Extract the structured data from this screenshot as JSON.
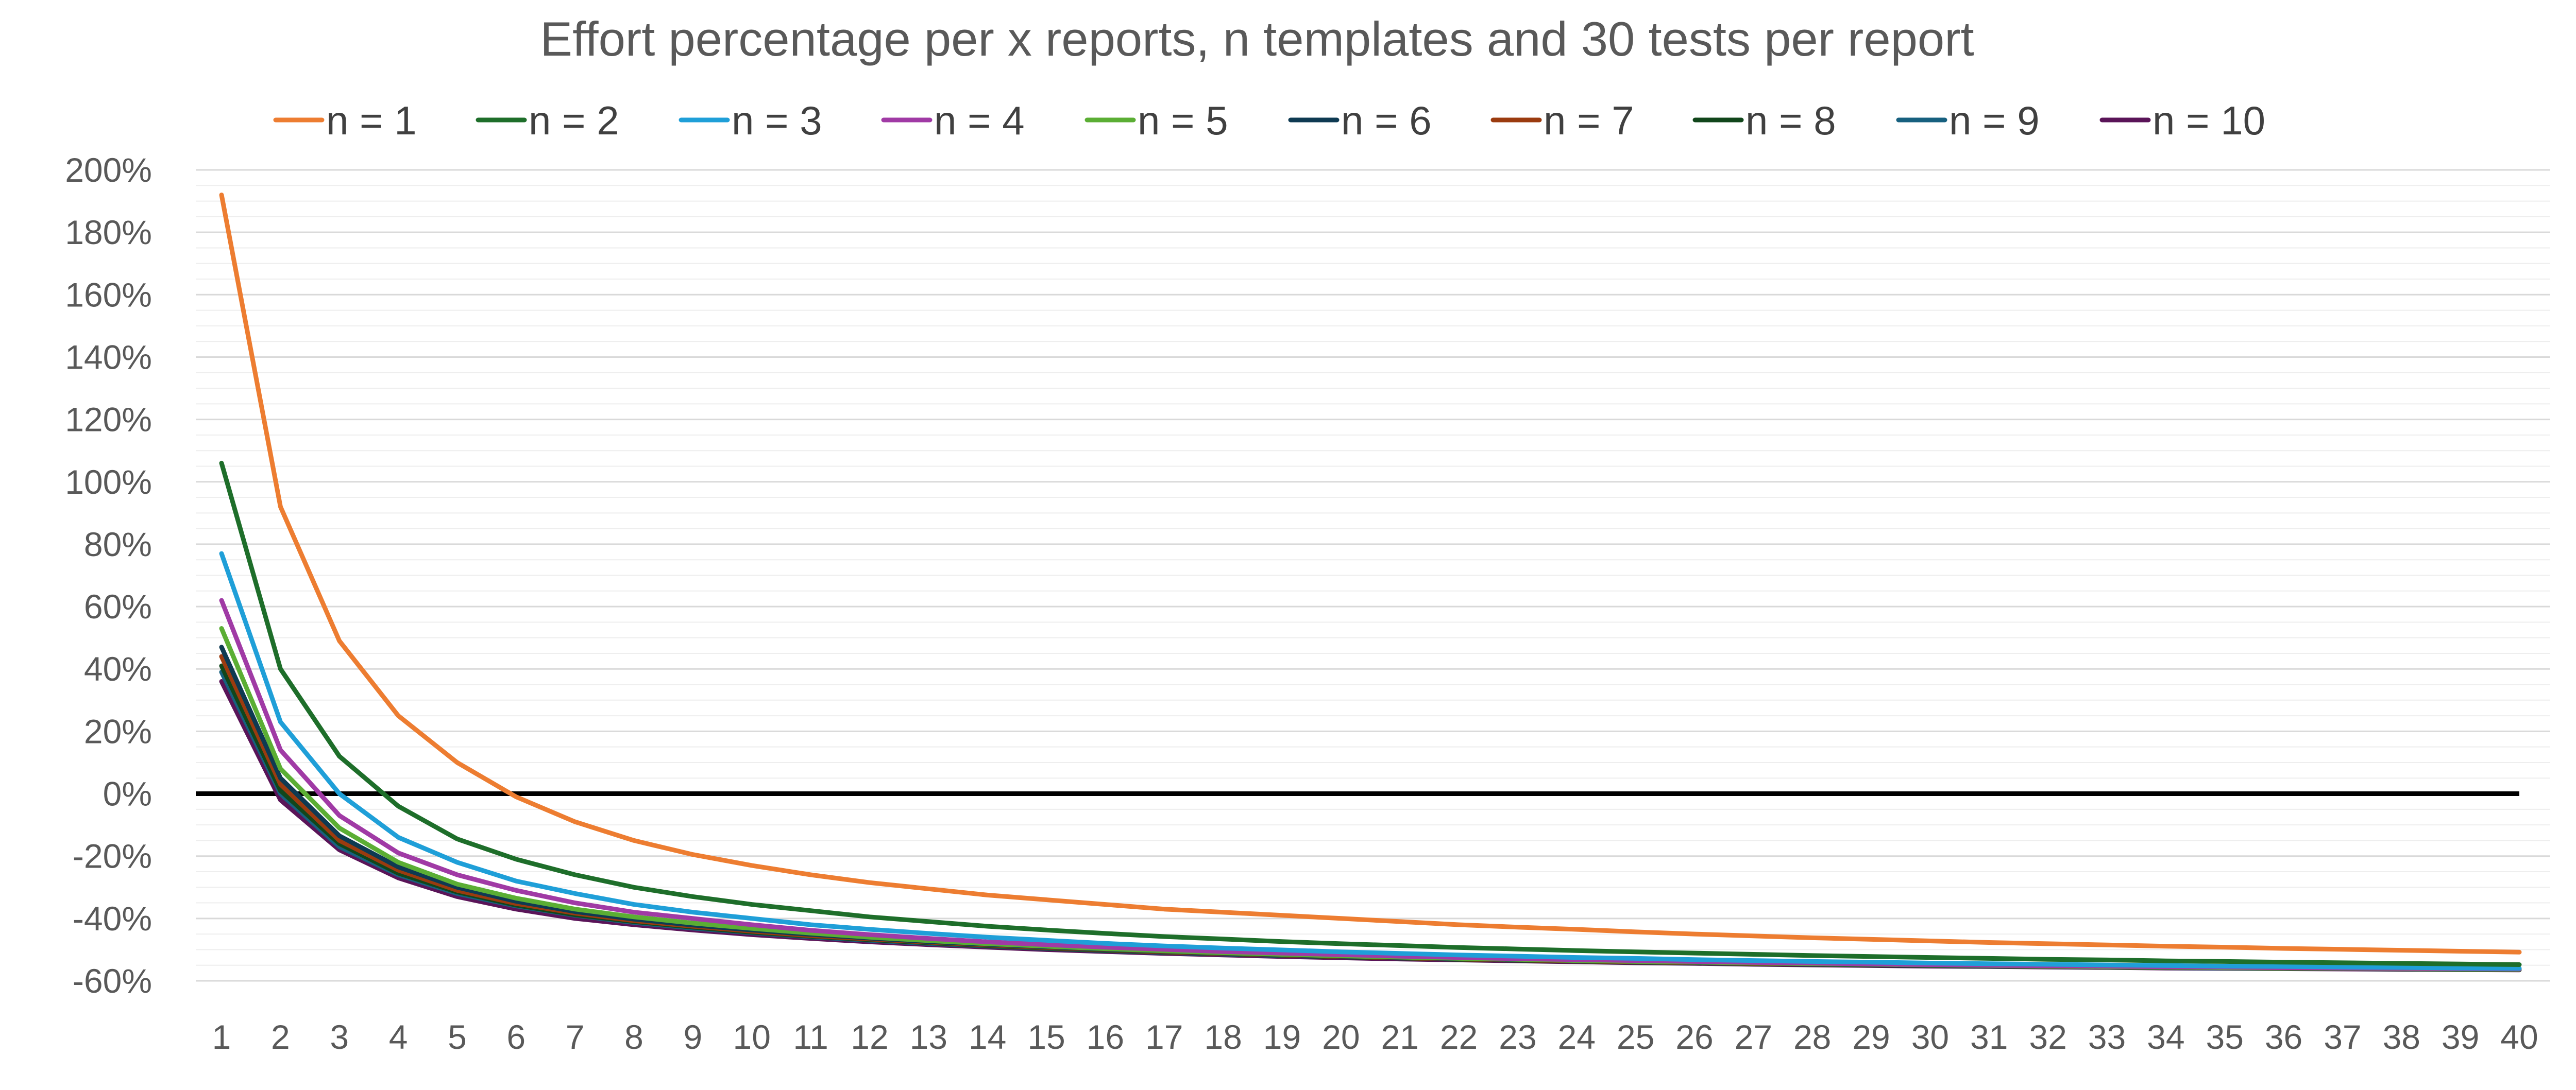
{
  "chart_data": {
    "type": "line",
    "title": "Effort percentage per x reports, n templates and 30 tests per report",
    "xlabel": "",
    "ylabel": "",
    "x": [
      1,
      2,
      3,
      4,
      5,
      6,
      7,
      8,
      9,
      10,
      11,
      12,
      13,
      14,
      15,
      16,
      17,
      18,
      19,
      20,
      21,
      22,
      23,
      24,
      25,
      26,
      27,
      28,
      29,
      30,
      31,
      32,
      33,
      34,
      35,
      36,
      37,
      38,
      39,
      40
    ],
    "x_tick_labels": [
      "1",
      "2",
      "3",
      "4",
      "5",
      "6",
      "7",
      "8",
      "9",
      "10",
      "11",
      "12",
      "13",
      "14",
      "15",
      "16",
      "17",
      "18",
      "19",
      "20",
      "21",
      "22",
      "23",
      "24",
      "25",
      "26",
      "27",
      "28",
      "29",
      "30",
      "31",
      "32",
      "33",
      "34",
      "35",
      "36",
      "37",
      "38",
      "39",
      "40"
    ],
    "ylim": [
      -0.6,
      2.0
    ],
    "y_ticks": [
      -0.6,
      -0.4,
      -0.2,
      0,
      0.2,
      0.4,
      0.6,
      0.8,
      1.0,
      1.2,
      1.4,
      1.6,
      1.8,
      2.0
    ],
    "y_tick_labels": [
      "-60%",
      "-40%",
      "-20%",
      "0%",
      "20%",
      "40%",
      "60%",
      "80%",
      "100%",
      "120%",
      "140%",
      "160%",
      "180%",
      "200%"
    ],
    "y_format": "percent",
    "grid": "major and minor horizontal",
    "legend_position": "top",
    "reference_line": {
      "y": 0,
      "color": "#000000"
    },
    "series": [
      {
        "name": "n = 1",
        "color": "#ED7D31",
        "values": [
          1.92,
          0.92,
          0.49,
          0.25,
          0.1,
          -0.01,
          -0.09,
          -0.15,
          -0.195,
          -0.23,
          -0.26,
          -0.285,
          -0.305,
          -0.325,
          -0.34,
          -0.355,
          -0.37,
          -0.38,
          -0.39,
          -0.4,
          -0.41,
          -0.42,
          -0.428,
          -0.435,
          -0.443,
          -0.45,
          -0.456,
          -0.462,
          -0.467,
          -0.472,
          -0.477,
          -0.481,
          -0.485,
          -0.489,
          -0.492,
          -0.496,
          -0.499,
          -0.502,
          -0.505,
          -0.508
        ]
      },
      {
        "name": "n = 2",
        "color": "#1E6E2A",
        "values": [
          1.06,
          0.4,
          0.12,
          -0.04,
          -0.145,
          -0.21,
          -0.26,
          -0.3,
          -0.33,
          -0.355,
          -0.375,
          -0.395,
          -0.41,
          -0.425,
          -0.437,
          -0.448,
          -0.458,
          -0.466,
          -0.474,
          -0.481,
          -0.487,
          -0.493,
          -0.498,
          -0.503,
          -0.507,
          -0.511,
          -0.515,
          -0.519,
          -0.522,
          -0.525,
          -0.528,
          -0.531,
          -0.533,
          -0.536,
          -0.538,
          -0.54,
          -0.542,
          -0.544,
          -0.546,
          -0.548
        ]
      },
      {
        "name": "n = 3",
        "color": "#1F9FD8",
        "values": [
          0.77,
          0.23,
          0.0,
          -0.14,
          -0.22,
          -0.28,
          -0.32,
          -0.355,
          -0.38,
          -0.4,
          -0.42,
          -0.435,
          -0.448,
          -0.46,
          -0.47,
          -0.48,
          -0.488,
          -0.495,
          -0.501,
          -0.507,
          -0.512,
          -0.517,
          -0.521,
          -0.525,
          -0.528,
          -0.532,
          -0.535,
          -0.538,
          -0.54,
          -0.543,
          -0.545,
          -0.547,
          -0.549,
          -0.551,
          -0.553,
          -0.554,
          -0.556,
          -0.557,
          -0.559,
          -0.56
        ]
      },
      {
        "name": "n = 4",
        "color": "#A03AA5",
        "values": [
          0.62,
          0.14,
          -0.07,
          -0.19,
          -0.26,
          -0.31,
          -0.35,
          -0.38,
          -0.4,
          -0.42,
          -0.438,
          -0.452,
          -0.464,
          -0.475,
          -0.484,
          -0.492,
          -0.499,
          -0.506,
          -0.511,
          -0.516,
          -0.521,
          -0.525,
          -0.529,
          -0.532,
          -0.535,
          -0.538,
          -0.541,
          -0.543,
          -0.546,
          -0.548,
          -0.55,
          -0.552,
          -0.553,
          -0.555,
          -0.556,
          -0.558,
          -0.559,
          -0.56,
          -0.561,
          -0.562
        ]
      },
      {
        "name": "n = 5",
        "color": "#5BAE34",
        "values": [
          0.53,
          0.08,
          -0.11,
          -0.22,
          -0.29,
          -0.335,
          -0.37,
          -0.395,
          -0.415,
          -0.432,
          -0.447,
          -0.46,
          -0.471,
          -0.481,
          -0.489,
          -0.497,
          -0.504,
          -0.51,
          -0.515,
          -0.52,
          -0.524,
          -0.528,
          -0.531,
          -0.535,
          -0.538,
          -0.54,
          -0.543,
          -0.545,
          -0.547,
          -0.549,
          -0.551,
          -0.553,
          -0.555,
          -0.556,
          -0.558,
          -0.559,
          -0.56,
          -0.561,
          -0.562,
          -0.563
        ]
      },
      {
        "name": "n = 6",
        "color": "#0E3A52",
        "values": [
          0.47,
          0.05,
          -0.135,
          -0.235,
          -0.3,
          -0.345,
          -0.378,
          -0.402,
          -0.421,
          -0.437,
          -0.451,
          -0.463,
          -0.474,
          -0.483,
          -0.491,
          -0.499,
          -0.505,
          -0.511,
          -0.516,
          -0.521,
          -0.525,
          -0.529,
          -0.532,
          -0.535,
          -0.538,
          -0.541,
          -0.543,
          -0.546,
          -0.548,
          -0.55,
          -0.552,
          -0.553,
          -0.555,
          -0.556,
          -0.558,
          -0.559,
          -0.56,
          -0.561,
          -0.562,
          -0.563
        ]
      },
      {
        "name": "n = 7",
        "color": "#9B3B0F",
        "values": [
          0.44,
          0.03,
          -0.15,
          -0.245,
          -0.31,
          -0.352,
          -0.383,
          -0.407,
          -0.425,
          -0.441,
          -0.455,
          -0.466,
          -0.476,
          -0.485,
          -0.493,
          -0.5,
          -0.507,
          -0.512,
          -0.517,
          -0.522,
          -0.526,
          -0.53,
          -0.533,
          -0.536,
          -0.539,
          -0.542,
          -0.544,
          -0.546,
          -0.548,
          -0.55,
          -0.552,
          -0.554,
          -0.555,
          -0.557,
          -0.558,
          -0.559,
          -0.56,
          -0.561,
          -0.562,
          -0.563
        ]
      },
      {
        "name": "n = 8",
        "color": "#11461B",
        "values": [
          0.41,
          0.01,
          -0.16,
          -0.255,
          -0.315,
          -0.357,
          -0.388,
          -0.41,
          -0.428,
          -0.444,
          -0.457,
          -0.468,
          -0.478,
          -0.487,
          -0.495,
          -0.502,
          -0.508,
          -0.513,
          -0.518,
          -0.523,
          -0.527,
          -0.531,
          -0.534,
          -0.537,
          -0.54,
          -0.542,
          -0.545,
          -0.547,
          -0.549,
          -0.551,
          -0.553,
          -0.554,
          -0.556,
          -0.557,
          -0.558,
          -0.56,
          -0.561,
          -0.562,
          -0.563,
          -0.564
        ]
      },
      {
        "name": "n = 9",
        "color": "#17607F",
        "values": [
          0.39,
          0.0,
          -0.17,
          -0.26,
          -0.32,
          -0.36,
          -0.39,
          -0.413,
          -0.431,
          -0.446,
          -0.459,
          -0.47,
          -0.48,
          -0.488,
          -0.496,
          -0.503,
          -0.509,
          -0.514,
          -0.519,
          -0.523,
          -0.527,
          -0.531,
          -0.534,
          -0.537,
          -0.54,
          -0.543,
          -0.545,
          -0.547,
          -0.549,
          -0.551,
          -0.553,
          -0.555,
          -0.556,
          -0.558,
          -0.559,
          -0.56,
          -0.561,
          -0.562,
          -0.563,
          -0.564
        ]
      },
      {
        "name": "n = 10",
        "color": "#5A1458",
        "values": [
          0.36,
          -0.02,
          -0.18,
          -0.27,
          -0.33,
          -0.37,
          -0.4,
          -0.42,
          -0.437,
          -0.452,
          -0.464,
          -0.475,
          -0.484,
          -0.492,
          -0.5,
          -0.506,
          -0.512,
          -0.517,
          -0.522,
          -0.526,
          -0.53,
          -0.533,
          -0.536,
          -0.539,
          -0.542,
          -0.544,
          -0.547,
          -0.549,
          -0.551,
          -0.553,
          -0.554,
          -0.556,
          -0.557,
          -0.559,
          -0.56,
          -0.561,
          -0.562,
          -0.563,
          -0.564,
          -0.565
        ]
      }
    ]
  }
}
